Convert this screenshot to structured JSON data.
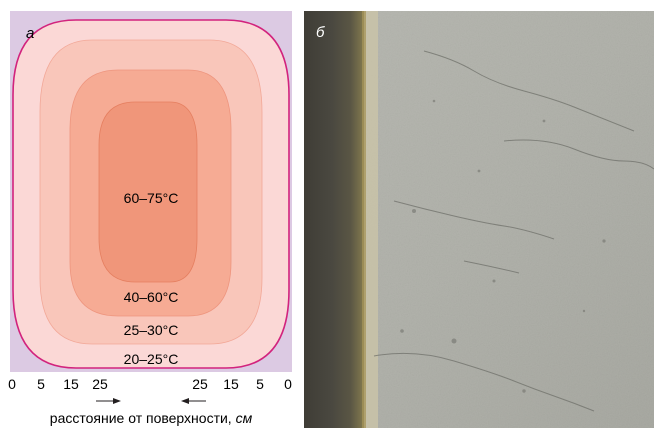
{
  "panel_a": {
    "label": "а",
    "zones": [
      {
        "text": "60–75°C",
        "color": "#f0967a"
      },
      {
        "text": "40–60°C",
        "color": "#f6ab94"
      },
      {
        "text": "25–30°C",
        "color": "#f9c6ba"
      },
      {
        "text": "20–25°C",
        "color": "#fbd8d6"
      }
    ],
    "background_color": "#dccae3",
    "outline_color": "#d2237d",
    "axis": {
      "ticks_left": [
        "0",
        "5",
        "15",
        "25"
      ],
      "ticks_right": [
        "25",
        "15",
        "5",
        "0"
      ],
      "label_main": "расстояние от поверхности, ",
      "label_unit": "см"
    }
  },
  "panel_b": {
    "label": "б",
    "photo": "concrete-wall-cracks-photo"
  }
}
